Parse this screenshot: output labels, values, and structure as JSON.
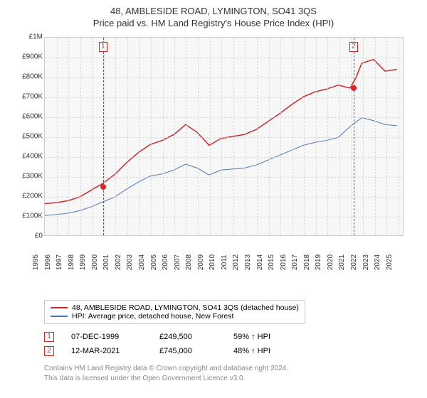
{
  "title": "48, AMBLESIDE ROAD, LYMINGTON, SO41 3QS",
  "subtitle": "Price paid vs. HM Land Registry's House Price Index (HPI)",
  "chart": {
    "type": "line",
    "background_color": "#f7f7f7",
    "grid_color": "#d5d5d5",
    "ylim": [
      0,
      1000000
    ],
    "yticks": [
      0,
      100000,
      200000,
      300000,
      400000,
      500000,
      600000,
      700000,
      800000,
      900000,
      1000000
    ],
    "ytick_labels": [
      "£0",
      "£100K",
      "£200K",
      "£300K",
      "£400K",
      "£500K",
      "£600K",
      "£700K",
      "£800K",
      "£900K",
      "£1M"
    ],
    "xlim": [
      1995,
      2025.5
    ],
    "xticks": [
      1995,
      1996,
      1997,
      1998,
      1999,
      2000,
      2001,
      2002,
      2003,
      2004,
      2005,
      2006,
      2007,
      2008,
      2009,
      2010,
      2011,
      2012,
      2013,
      2014,
      2015,
      2016,
      2017,
      2018,
      2019,
      2020,
      2021,
      2022,
      2023,
      2024,
      2025
    ],
    "axis_fontsize": 10,
    "series": [
      {
        "name": "property",
        "label": "48, AMBLESIDE ROAD, LYMINGTON, SO41 3QS (detached house)",
        "color": "#d62728",
        "line_width": 1.5,
        "x": [
          1995,
          1996,
          1997,
          1998,
          1999,
          2000,
          2001,
          2002,
          2003,
          2004,
          2005,
          2006,
          2007,
          2008,
          2009,
          2010,
          2011,
          2012,
          2013,
          2014,
          2015,
          2016,
          2017,
          2018,
          2019,
          2020,
          2021,
          2021.5,
          2022,
          2023,
          2024,
          2025
        ],
        "y": [
          160000,
          165000,
          175000,
          195000,
          230000,
          265000,
          310000,
          370000,
          420000,
          460000,
          480000,
          510000,
          560000,
          520000,
          455000,
          490000,
          500000,
          510000,
          535000,
          575000,
          615000,
          660000,
          700000,
          725000,
          740000,
          760000,
          745000,
          797000,
          870000,
          890000,
          830000,
          840000
        ]
      },
      {
        "name": "hpi",
        "label": "HPI: Average price, detached house, New Forest",
        "color": "#4a78b5",
        "line_width": 1,
        "x": [
          1995,
          1996,
          1997,
          1998,
          1999,
          2000,
          2001,
          2002,
          2003,
          2004,
          2005,
          2006,
          2007,
          2008,
          2009,
          2010,
          2011,
          2012,
          2013,
          2014,
          2015,
          2016,
          2017,
          2018,
          2019,
          2020,
          2021,
          2022,
          2023,
          2024,
          2025
        ],
        "y": [
          100000,
          105000,
          112000,
          125000,
          145000,
          170000,
          195000,
          235000,
          270000,
          300000,
          310000,
          330000,
          360000,
          340000,
          305000,
          330000,
          335000,
          340000,
          355000,
          380000,
          405000,
          430000,
          455000,
          470000,
          480000,
          495000,
          550000,
          595000,
          580000,
          560000,
          555000
        ]
      }
    ],
    "markers": [
      {
        "n": "1",
        "x": 1999.94,
        "y": 249500,
        "color": "#d62728"
      },
      {
        "n": "2",
        "x": 2021.2,
        "y": 745000,
        "color": "#d62728"
      }
    ]
  },
  "legend": {
    "rows": [
      {
        "color": "#d62728",
        "text": "48, AMBLESIDE ROAD, LYMINGTON, SO41 3QS (detached house)"
      },
      {
        "color": "#4a78b5",
        "text": "HPI: Average price, detached house, New Forest"
      }
    ]
  },
  "table": {
    "rows": [
      {
        "n": "1",
        "color": "#d62728",
        "date": "07-DEC-1999",
        "price": "£249,500",
        "pct": "59% ↑ HPI"
      },
      {
        "n": "2",
        "color": "#d62728",
        "date": "12-MAR-2021",
        "price": "£745,000",
        "pct": "48% ↑ HPI"
      }
    ]
  },
  "credit_line1": "Contains HM Land Registry data © Crown copyright and database right 2024.",
  "credit_line2": "This data is licensed under the Open Government Licence v3.0."
}
